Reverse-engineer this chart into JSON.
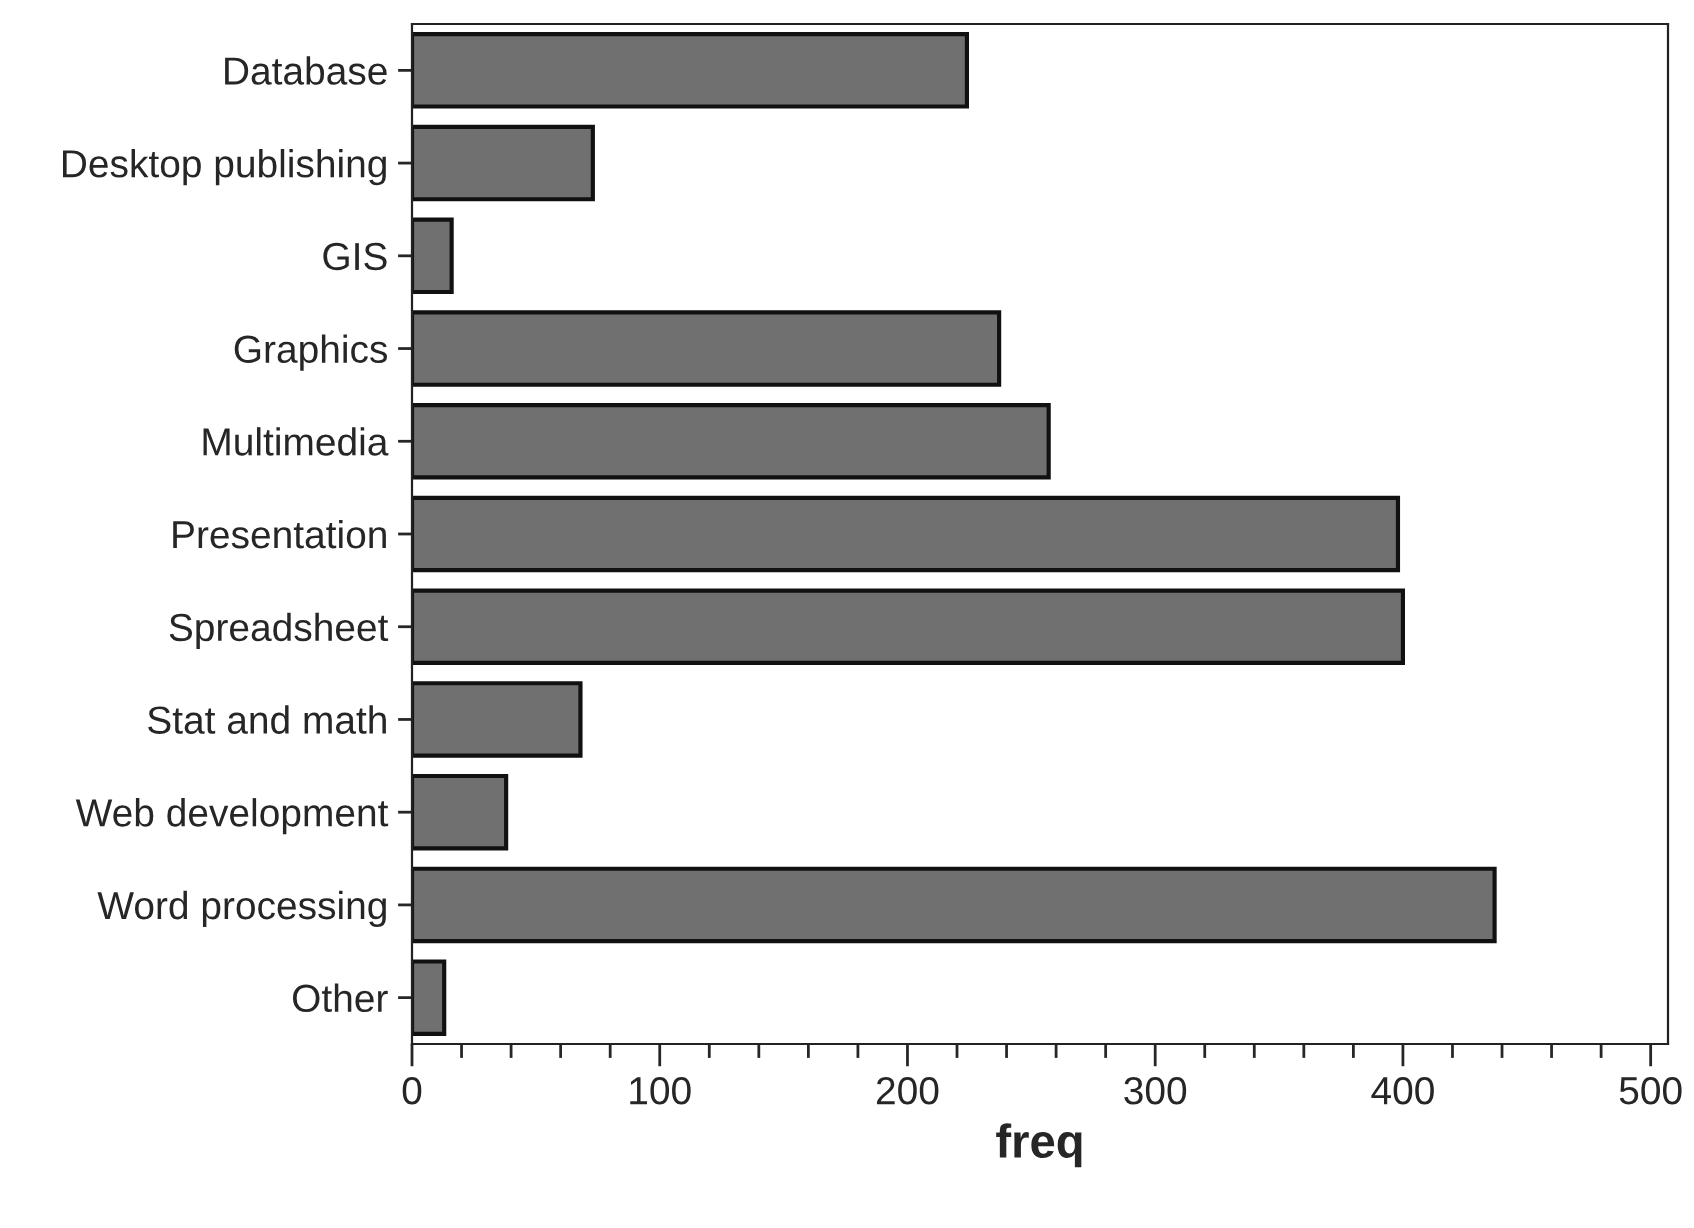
{
  "chart_data": {
    "type": "bar",
    "orientation": "horizontal",
    "xlabel": "freq",
    "categories": [
      "Database",
      "Desktop publishing",
      "GIS",
      "Graphics",
      "Multimedia",
      "Presentation",
      "Spreadsheet",
      "Stat and math",
      "Web development",
      "Word processing",
      "Other"
    ],
    "values": [
      224,
      73,
      16,
      237,
      257,
      398,
      400,
      68,
      38,
      437,
      13
    ],
    "color": "#707070",
    "xlim": [
      0,
      507
    ],
    "xticks": [
      0,
      {
        "value": 20,
        "label": null
      },
      {
        "value": 40,
        "label": null
      },
      {
        "value": 60,
        "label": null
      },
      {
        "value": 80,
        "label": null
      },
      100,
      {
        "value": 120,
        "label": null
      },
      {
        "value": 140,
        "label": null
      },
      {
        "value": 160,
        "label": null
      },
      {
        "value": 180,
        "label": null
      },
      200,
      {
        "value": 220,
        "label": null
      },
      {
        "value": 240,
        "label": null
      },
      {
        "value": 260,
        "label": null
      },
      {
        "value": 280,
        "label": null
      },
      300,
      {
        "value": 320,
        "label": null
      },
      {
        "value": 340,
        "label": null
      },
      {
        "value": 360,
        "label": null
      },
      {
        "value": 380,
        "label": null
      },
      400,
      {
        "value": 420,
        "label": null
      },
      {
        "value": 440,
        "label": null
      },
      {
        "value": 460,
        "label": null
      },
      {
        "value": 480,
        "label": null
      },
      500
    ],
    "grid": false
  }
}
